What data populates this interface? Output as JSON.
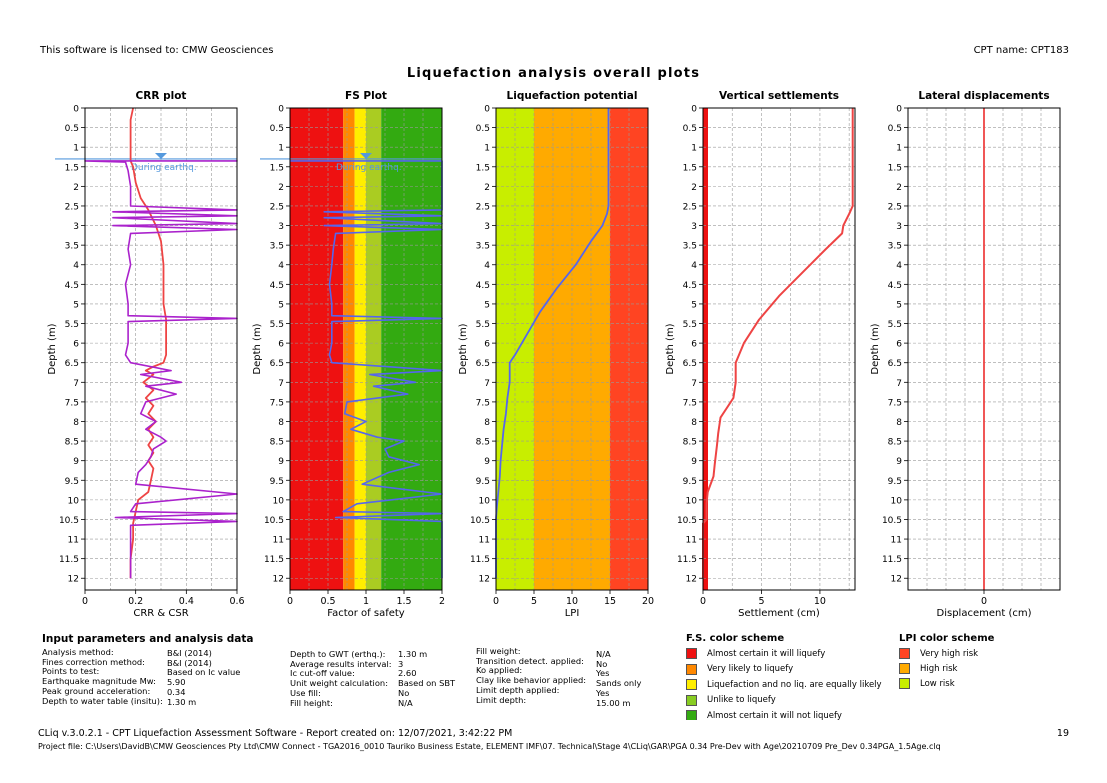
{
  "header": {
    "license": "This software is licensed to: CMW Geosciences",
    "cpt_name": "CPT name: CPT183",
    "title": "Liquefaction analysis overall plots"
  },
  "gwt_label": "During earthq.",
  "depth_axis": {
    "label": "Depth (m)",
    "ticks": [
      "0",
      "0.5",
      "1",
      "1.5",
      "2",
      "2.5",
      "3",
      "3.5",
      "4",
      "4.5",
      "5",
      "5.5",
      "6",
      "6.5",
      "7",
      "7.5",
      "8",
      "8.5",
      "9",
      "9.5",
      "10",
      "10.5",
      "11",
      "11.5",
      "12"
    ]
  },
  "chart_data": [
    {
      "type": "line",
      "title": "CRR plot",
      "xlabel": "CRR & CSR",
      "ylabel": "Depth (m)",
      "xlim": [
        0,
        0.6
      ],
      "ylim": [
        12.3,
        0
      ],
      "xticks": [
        "0",
        "0.2",
        "0.4",
        "0.6"
      ],
      "series": [
        {
          "color": "#ee4444",
          "width": 1.8,
          "points": [
            [
              0.19,
              0
            ],
            [
              0.18,
              0.3
            ],
            [
              0.18,
              0.6
            ],
            [
              0.18,
              1
            ],
            [
              0.18,
              1.35
            ],
            [
              0.19,
              1.5
            ],
            [
              0.2,
              1.9
            ],
            [
              0.22,
              2.3
            ],
            [
              0.25,
              2.6
            ],
            [
              0.28,
              3.0
            ],
            [
              0.3,
              3.4
            ],
            [
              0.31,
              4
            ],
            [
              0.31,
              4.6
            ],
            [
              0.31,
              5
            ],
            [
              0.32,
              5.4
            ],
            [
              0.32,
              5.8
            ],
            [
              0.32,
              6.3
            ],
            [
              0.31,
              6.5
            ],
            [
              0.27,
              6.6
            ],
            [
              0.24,
              6.7
            ],
            [
              0.27,
              6.8
            ],
            [
              0.23,
              7.0
            ],
            [
              0.27,
              7.2
            ],
            [
              0.24,
              7.4
            ],
            [
              0.27,
              7.6
            ],
            [
              0.25,
              7.8
            ],
            [
              0.28,
              8.0
            ],
            [
              0.25,
              8.2
            ],
            [
              0.27,
              8.4
            ],
            [
              0.25,
              8.6
            ],
            [
              0.27,
              8.8
            ],
            [
              0.25,
              9.0
            ],
            [
              0.27,
              9.2
            ],
            [
              0.26,
              9.5
            ],
            [
              0.25,
              9.8
            ],
            [
              0.21,
              10.0
            ],
            [
              0.2,
              10.3
            ],
            [
              0.19,
              10.6
            ],
            [
              0.19,
              11
            ],
            [
              0.18,
              11.5
            ],
            [
              0.18,
              12
            ]
          ]
        },
        {
          "color": "#aa22cc",
          "width": 1.6,
          "points": [
            [
              0,
              1.35
            ],
            [
              0.6,
              1.35
            ],
            [
              0,
              1.35
            ],
            [
              0.16,
              1.38
            ],
            [
              0.17,
              1.6
            ],
            [
              0.18,
              2.0
            ],
            [
              0.18,
              2.5
            ],
            [
              0.6,
              2.6
            ],
            [
              0.11,
              2.65
            ],
            [
              0.6,
              2.75
            ],
            [
              0.11,
              2.8
            ],
            [
              0.6,
              2.95
            ],
            [
              0.11,
              3.0
            ],
            [
              0.6,
              3.1
            ],
            [
              0.18,
              3.2
            ],
            [
              0.17,
              3.6
            ],
            [
              0.18,
              4.0
            ],
            [
              0.16,
              4.5
            ],
            [
              0.17,
              5.0
            ],
            [
              0.17,
              5.3
            ],
            [
              0.6,
              5.37
            ],
            [
              0.17,
              5.45
            ],
            [
              0.17,
              6.0
            ],
            [
              0.16,
              6.3
            ],
            [
              0.18,
              6.5
            ],
            [
              0.34,
              6.7
            ],
            [
              0.22,
              6.8
            ],
            [
              0.38,
              7.0
            ],
            [
              0.24,
              7.1
            ],
            [
              0.36,
              7.3
            ],
            [
              0.24,
              7.5
            ],
            [
              0.22,
              7.8
            ],
            [
              0.28,
              8.0
            ],
            [
              0.24,
              8.2
            ],
            [
              0.3,
              8.4
            ],
            [
              0.32,
              8.5
            ],
            [
              0.27,
              8.7
            ],
            [
              0.26,
              8.9
            ],
            [
              0.24,
              9.1
            ],
            [
              0.21,
              9.3
            ],
            [
              0.2,
              9.6
            ],
            [
              0.6,
              9.85
            ],
            [
              0.2,
              10.1
            ],
            [
              0.18,
              10.3
            ],
            [
              0.6,
              10.35
            ],
            [
              0.12,
              10.45
            ],
            [
              0.6,
              10.55
            ],
            [
              0.18,
              10.65
            ],
            [
              0.18,
              11.2
            ],
            [
              0.18,
              12
            ]
          ]
        }
      ]
    },
    {
      "type": "line",
      "title": "FS Plot",
      "xlabel": "Factor of safety",
      "ylabel": "Depth (m)",
      "xlim": [
        0,
        2
      ],
      "ylim": [
        12.3,
        0
      ],
      "xticks": [
        "0",
        "0.5",
        "1",
        "1.5",
        "2"
      ],
      "bands": [
        {
          "from": 0,
          "to": 0.7,
          "color": "#ee1111"
        },
        {
          "from": 0.7,
          "to": 0.85,
          "color": "#ff8800"
        },
        {
          "from": 0.85,
          "to": 1.0,
          "color": "#ffee00"
        },
        {
          "from": 1.0,
          "to": 1.2,
          "color": "#aacc22"
        },
        {
          "from": 1.2,
          "to": 2.0,
          "color": "#33aa11"
        }
      ],
      "series": [
        {
          "color": "#5566ee",
          "width": 1.6,
          "points": [
            [
              0,
              1.35
            ],
            [
              2,
              1.35
            ],
            [
              2,
              1.38
            ],
            [
              2,
              2.5
            ],
            [
              2,
              2.6
            ],
            [
              0.45,
              2.65
            ],
            [
              2,
              2.75
            ],
            [
              0.45,
              2.8
            ],
            [
              2,
              2.95
            ],
            [
              0.45,
              3.0
            ],
            [
              2,
              3.1
            ],
            [
              0.6,
              3.2
            ],
            [
              0.57,
              3.6
            ],
            [
              0.55,
              4.0
            ],
            [
              0.52,
              4.5
            ],
            [
              0.55,
              5.0
            ],
            [
              0.55,
              5.3
            ],
            [
              2,
              5.37
            ],
            [
              0.55,
              5.45
            ],
            [
              0.55,
              6.0
            ],
            [
              0.52,
              6.3
            ],
            [
              0.55,
              6.5
            ],
            [
              2,
              6.7
            ],
            [
              1.05,
              6.8
            ],
            [
              1.65,
              7.0
            ],
            [
              1.1,
              7.1
            ],
            [
              1.55,
              7.3
            ],
            [
              0.75,
              7.5
            ],
            [
              0.72,
              7.8
            ],
            [
              1.0,
              8.0
            ],
            [
              0.8,
              8.2
            ],
            [
              1.15,
              8.4
            ],
            [
              1.5,
              8.5
            ],
            [
              1.25,
              8.7
            ],
            [
              1.3,
              8.9
            ],
            [
              1.7,
              9.1
            ],
            [
              1.3,
              9.3
            ],
            [
              0.95,
              9.6
            ],
            [
              2,
              9.85
            ],
            [
              0.88,
              10.1
            ],
            [
              0.7,
              10.3
            ],
            [
              2,
              10.35
            ],
            [
              0.6,
              10.45
            ],
            [
              2,
              10.55
            ],
            [
              2,
              12
            ]
          ]
        }
      ]
    },
    {
      "type": "line",
      "title": "Liquefaction potential",
      "xlabel": "LPI",
      "ylabel": "Depth (m)",
      "xlim": [
        0,
        20
      ],
      "ylim": [
        12.3,
        0
      ],
      "xticks": [
        "0",
        "5",
        "10",
        "15",
        "20"
      ],
      "bands": [
        {
          "from": 0,
          "to": 5,
          "color": "#c8ee00"
        },
        {
          "from": 5,
          "to": 15,
          "color": "#ffaa00"
        },
        {
          "from": 15,
          "to": 20,
          "color": "#ff4422"
        }
      ],
      "series": [
        {
          "color": "#5566ee",
          "width": 1.8,
          "points": [
            [
              14.8,
              0
            ],
            [
              14.8,
              2.5
            ],
            [
              14.6,
              2.7
            ],
            [
              14.0,
              3.0
            ],
            [
              12.5,
              3.4
            ],
            [
              10.5,
              4.0
            ],
            [
              8.0,
              4.6
            ],
            [
              5.8,
              5.2
            ],
            [
              4.0,
              5.8
            ],
            [
              2.5,
              6.3
            ],
            [
              1.8,
              6.5
            ],
            [
              1.8,
              7.0
            ],
            [
              1.5,
              7.4
            ],
            [
              1.3,
              7.8
            ],
            [
              1.0,
              8.2
            ],
            [
              0.8,
              8.6
            ],
            [
              0.6,
              9.0
            ],
            [
              0.5,
              9.4
            ],
            [
              0.3,
              9.8
            ],
            [
              0.1,
              10.2
            ],
            [
              0,
              10.5
            ],
            [
              0,
              12
            ]
          ]
        }
      ]
    },
    {
      "type": "line",
      "title": "Vertical settlements",
      "xlabel": "Settlement (cm)",
      "ylabel": "Depth (m)",
      "xlim": [
        0,
        13
      ],
      "ylim": [
        12.3,
        0
      ],
      "xticks": [
        "0",
        "5",
        "10"
      ],
      "series": [
        {
          "color": "#ee4444",
          "width": 2,
          "points": [
            [
              12.8,
              0
            ],
            [
              12.8,
              2.5
            ],
            [
              12.5,
              2.7
            ],
            [
              12.0,
              3.0
            ],
            [
              11.9,
              3.2
            ],
            [
              10.5,
              3.6
            ],
            [
              8.5,
              4.2
            ],
            [
              6.5,
              4.8
            ],
            [
              4.8,
              5.4
            ],
            [
              3.5,
              6.0
            ],
            [
              2.8,
              6.5
            ],
            [
              2.8,
              7.0
            ],
            [
              2.6,
              7.4
            ],
            [
              1.5,
              7.9
            ],
            [
              1.3,
              8.3
            ],
            [
              1.2,
              8.6
            ],
            [
              1.0,
              9.1
            ],
            [
              0.9,
              9.4
            ],
            [
              0.4,
              9.8
            ],
            [
              0.3,
              10.1
            ],
            [
              0.3,
              10.5
            ],
            [
              0,
              10.6
            ],
            [
              0,
              12
            ]
          ]
        }
      ],
      "left_bar_color": "#ee1111"
    },
    {
      "type": "line",
      "title": "Lateral displacements",
      "xlabel": "Displacement (cm)",
      "ylabel": "Depth (m)",
      "xlim": [
        -1,
        1
      ],
      "ylim": [
        12.3,
        0
      ],
      "xticks": [
        "0"
      ],
      "series": [
        {
          "color": "#ee4444",
          "width": 1.8,
          "points": [
            [
              0,
              0
            ],
            [
              0,
              12.3
            ]
          ]
        }
      ]
    }
  ],
  "input_params": {
    "title": "Input parameters and analysis data",
    "col1": [
      {
        "label": "Analysis method:",
        "value": "B&I (2014)"
      },
      {
        "label": "Fines correction method:",
        "value": "B&I (2014)"
      },
      {
        "label": "Points to test:",
        "value": "Based on Ic value"
      },
      {
        "label": "Earthquake magnitude Mw:",
        "value": "5.90"
      },
      {
        "label": "Peak ground acceleration:",
        "value": "0.34"
      },
      {
        "label": "Depth to water table (insitu):",
        "value": "1.30 m"
      }
    ],
    "col2": [
      {
        "label": "Depth to GWT (erthq.):",
        "value": "1.30 m"
      },
      {
        "label": "Average results interval:",
        "value": "3"
      },
      {
        "label": "Ic cut-off value:",
        "value": "2.60"
      },
      {
        "label": "Unit weight calculation:",
        "value": "Based on SBT"
      },
      {
        "label": "Use fill:",
        "value": "No"
      },
      {
        "label": "Fill height:",
        "value": "N/A"
      }
    ],
    "col3": [
      {
        "label": "Fill weight:",
        "value": "N/A"
      },
      {
        "label": "Transition detect. applied:",
        "value": "No"
      },
      {
        "label": "Ko applied:",
        "value": "Yes"
      },
      {
        "label": "Clay like behavior applied:",
        "value": "Sands only"
      },
      {
        "label": "Limit depth applied:",
        "value": "Yes"
      },
      {
        "label": "Limit depth:",
        "value": "15.00 m"
      }
    ]
  },
  "fs_legend": {
    "title": "F.S. color scheme",
    "items": [
      {
        "label": "Almost certain it will liquefy",
        "color": "#ee1111"
      },
      {
        "label": "Very likely to liquefy",
        "color": "#ff8800"
      },
      {
        "label": "Liquefaction and no liq. are equally likely",
        "color": "#ffee00"
      },
      {
        "label": "Unlike to liquefy",
        "color": "#88cc22"
      },
      {
        "label": "Almost certain it will not liquefy",
        "color": "#33aa11"
      }
    ]
  },
  "lpi_legend": {
    "title": "LPI color scheme",
    "items": [
      {
        "label": "Very high risk",
        "color": "#ff4422"
      },
      {
        "label": "High risk",
        "color": "#ffaa00"
      },
      {
        "label": "Low risk",
        "color": "#c8ee00"
      }
    ]
  },
  "footer": {
    "line1": "CLiq v.3.0.2.1 - CPT Liquefaction Assessment Software - Report created on: 12/07/2021, 3:42:22 PM",
    "page": "19",
    "line2": "Project file: C:\\Users\\DavidB\\CMW Geosciences Pty Ltd\\CMW Connect - TGA2016_0010 Tauriko Business Estate, ELEMENT IMF\\07. Technical\\Stage 4\\CLiq\\GAR\\PGA 0.34 Pre-Dev with Age\\20210709 Pre_Dev 0.34PGA_1.5Age.clq"
  }
}
